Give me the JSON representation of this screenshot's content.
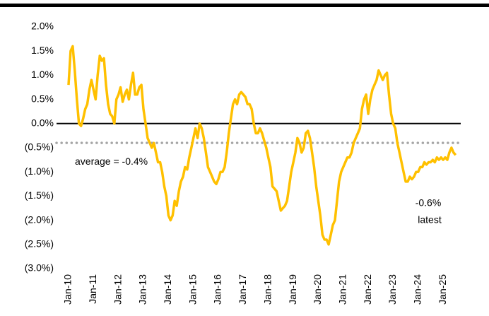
{
  "chart_data": {
    "type": "line",
    "categories": [
      "Jan-10",
      null,
      null,
      null,
      null,
      null,
      null,
      null,
      null,
      null,
      null,
      null,
      "Jan-11",
      null,
      null,
      null,
      null,
      null,
      null,
      null,
      null,
      null,
      null,
      null,
      "Jan-12",
      null,
      null,
      null,
      null,
      null,
      null,
      null,
      null,
      null,
      null,
      null,
      "Jan-13",
      null,
      null,
      null,
      null,
      null,
      null,
      null,
      null,
      null,
      null,
      null,
      "Jan-14",
      null,
      null,
      null,
      null,
      null,
      null,
      null,
      null,
      null,
      null,
      null,
      "Jan-15",
      null,
      null,
      null,
      null,
      null,
      null,
      null,
      null,
      null,
      null,
      null,
      "Jan-16",
      null,
      null,
      null,
      null,
      null,
      null,
      null,
      null,
      null,
      null,
      null,
      "Jan-17",
      null,
      null,
      null,
      null,
      null,
      null,
      null,
      null,
      null,
      null,
      null,
      "Jan-18",
      null,
      null,
      null,
      null,
      null,
      null,
      null,
      null,
      null,
      null,
      null,
      "Jan-19",
      null,
      null,
      null,
      null,
      null,
      null,
      null,
      null,
      null,
      null,
      null,
      "Jan-20",
      null,
      null,
      null,
      null,
      null,
      null,
      null,
      null,
      null,
      null,
      null,
      "Jan-21",
      null,
      null,
      null,
      null,
      null,
      null,
      null,
      null,
      null,
      null,
      null,
      "Jan-22",
      null,
      null,
      null,
      null,
      null,
      null,
      null,
      null,
      null,
      null,
      null,
      "Jan-23",
      null,
      null,
      null,
      null,
      null,
      null,
      null,
      null,
      null,
      null,
      null,
      "Jan-24",
      null,
      null,
      null,
      null,
      null,
      null,
      null,
      null,
      null,
      null,
      null,
      "Jan-25",
      null,
      null,
      null,
      null,
      null,
      null
    ],
    "values": [
      0.8,
      1.5,
      1.6,
      1.1,
      0.5,
      0.0,
      -0.05,
      0.1,
      0.3,
      0.4,
      0.7,
      0.9,
      0.7,
      0.5,
      1.0,
      1.4,
      1.3,
      1.35,
      0.8,
      0.4,
      0.2,
      0.15,
      0.0,
      0.5,
      0.6,
      0.75,
      0.45,
      0.6,
      0.7,
      0.5,
      0.8,
      1.05,
      0.6,
      0.6,
      0.75,
      0.8,
      0.3,
      0.0,
      -0.3,
      -0.4,
      -0.5,
      -0.4,
      -0.6,
      -0.8,
      -0.8,
      -1.0,
      -1.3,
      -1.5,
      -1.9,
      -2.0,
      -1.9,
      -1.6,
      -1.7,
      -1.4,
      -1.2,
      -1.1,
      -0.9,
      -0.95,
      -0.7,
      -0.5,
      -0.3,
      -0.1,
      -0.3,
      0.0,
      -0.1,
      -0.3,
      -0.6,
      -0.9,
      -1.0,
      -1.1,
      -1.2,
      -1.25,
      -1.15,
      -1.0,
      -1.0,
      -0.9,
      -0.6,
      -0.2,
      0.1,
      0.4,
      0.5,
      0.4,
      0.6,
      0.65,
      0.6,
      0.55,
      0.4,
      0.4,
      0.3,
      0.0,
      -0.2,
      -0.2,
      -0.1,
      -0.2,
      -0.35,
      -0.5,
      -0.7,
      -0.9,
      -1.3,
      -1.35,
      -1.4,
      -1.6,
      -1.8,
      -1.75,
      -1.7,
      -1.6,
      -1.3,
      -1.0,
      -0.8,
      -0.6,
      -0.3,
      -0.4,
      -0.6,
      -0.5,
      -0.2,
      -0.15,
      -0.3,
      -0.6,
      -0.9,
      -1.3,
      -1.6,
      -1.9,
      -2.3,
      -2.4,
      -2.4,
      -2.5,
      -2.3,
      -2.1,
      -2.0,
      -1.6,
      -1.2,
      -1.0,
      -0.9,
      -0.8,
      -0.7,
      -0.7,
      -0.6,
      -0.4,
      -0.3,
      -0.2,
      -0.1,
      0.3,
      0.5,
      0.6,
      0.2,
      0.5,
      0.7,
      0.8,
      0.9,
      1.1,
      1.0,
      0.9,
      1.0,
      1.05,
      0.6,
      0.2,
      0.0,
      -0.1,
      -0.4,
      -0.6,
      -0.8,
      -1.0,
      -1.2,
      -1.2,
      -1.1,
      -1.15,
      -1.1,
      -1.0,
      -1.0,
      -0.9,
      -0.9,
      -0.8,
      -0.85,
      -0.8,
      -0.8,
      -0.75,
      -0.8,
      -0.7,
      -0.75,
      -0.7,
      -0.75,
      -0.7,
      -0.75,
      -0.6,
      -0.5,
      -0.6,
      -0.65
    ],
    "color": "#ffc000",
    "ylim": [
      -3.0,
      2.0
    ],
    "yticks": [
      {
        "value": 2.0,
        "label": "2.0%"
      },
      {
        "value": 1.5,
        "label": "1.5%"
      },
      {
        "value": 1.0,
        "label": "1.0%"
      },
      {
        "value": 0.5,
        "label": "0.5%"
      },
      {
        "value": 0.0,
        "label": "0.0%"
      },
      {
        "value": -0.5,
        "label": "(0.5%)"
      },
      {
        "value": -1.0,
        "label": "(1.0%)"
      },
      {
        "value": -1.5,
        "label": "(1.5%)"
      },
      {
        "value": -2.0,
        "label": "(2.0%)"
      },
      {
        "value": -2.5,
        "label": "(2.5%)"
      },
      {
        "value": -3.0,
        "label": "(3.0%)"
      }
    ],
    "negative_tick_color": "#e00000",
    "zero_line": true,
    "average": -0.4,
    "average_label": "average = -0.4%",
    "average_color": "#a6a6a6",
    "latest_label": "-0.6%",
    "latest_note": "latest"
  }
}
